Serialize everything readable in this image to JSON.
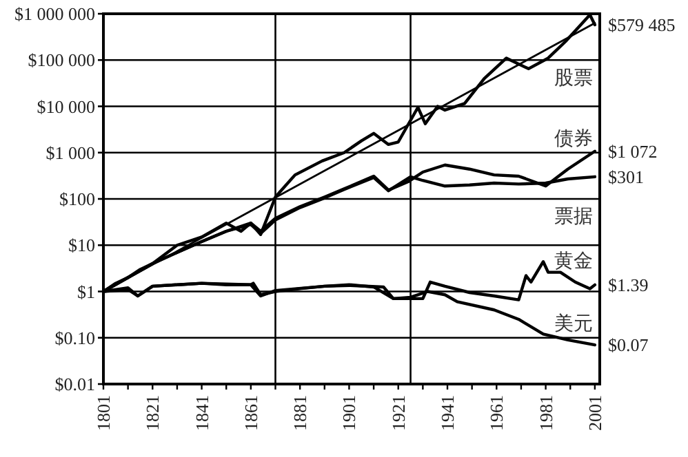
{
  "chart_data": {
    "type": "line",
    "log": true,
    "grid": "y",
    "xlim": [
      1801,
      2003
    ],
    "xticks": [
      1801,
      {
        "value": 1811,
        "label": null
      },
      1821,
      {
        "value": 1831,
        "label": null
      },
      1841,
      {
        "value": 1851,
        "label": null
      },
      1861,
      {
        "value": 1871,
        "label": null
      },
      1881,
      {
        "value": 1891,
        "label": null
      },
      1901,
      {
        "value": 1911,
        "label": null
      },
      1921,
      {
        "value": 1931,
        "label": null
      },
      1941,
      {
        "value": 1951,
        "label": null
      },
      1961,
      {
        "value": 1971,
        "label": null
      },
      1981,
      {
        "value": 1991,
        "label": null
      },
      2001
    ],
    "ylim": [
      0.01,
      1000000
    ],
    "yticks": [
      {
        "value": 0.01,
        "label": "$0.01"
      },
      {
        "value": 0.1,
        "label": "$0.10"
      },
      {
        "value": 1,
        "label": "$1"
      },
      {
        "value": 10,
        "label": "$10"
      },
      {
        "value": 100,
        "label": "$100"
      },
      {
        "value": 1000,
        "label": "$1 000"
      },
      {
        "value": 10000,
        "label": "$10 000"
      },
      {
        "value": 100000,
        "label": "$100 000"
      },
      {
        "value": 1000000,
        "label": "$1 000 000"
      }
    ],
    "ref_lines": [
      {
        "axis": "x",
        "value": 1871,
        "color": "#000000"
      },
      {
        "axis": "x",
        "value": 1926,
        "color": "#000000"
      }
    ],
    "series": [
      {
        "name": "股票",
        "color": "#000000",
        "x": [
          1801,
          1806,
          1811,
          1816,
          1821,
          1831,
          1841,
          1851,
          1857,
          1861,
          1865,
          1871,
          1879,
          1890,
          1899,
          1906,
          1911,
          1917,
          1921,
          1929,
          1932,
          1937,
          1940,
          1948,
          1956,
          1965,
          1974,
          1982,
          1989,
          1999,
          2001
        ],
        "values": [
          1,
          1.5,
          2,
          3,
          4,
          10,
          15,
          30,
          20,
          30,
          17,
          110,
          330,
          660,
          1000,
          1800,
          2600,
          1500,
          1700,
          9500,
          4200,
          10000,
          8300,
          11500,
          40000,
          110000,
          65000,
          110000,
          250000,
          950000,
          579485
        ]
      },
      {
        "name": "债券",
        "color": "#000000",
        "x": [
          1801,
          1811,
          1821,
          1831,
          1841,
          1851,
          1861,
          1865,
          1871,
          1881,
          1891,
          1899,
          1911,
          1917,
          1925,
          1931,
          1940,
          1950,
          1960,
          1970,
          1981,
          1990,
          2001
        ],
        "values": [
          1,
          2,
          4,
          7,
          12,
          20,
          30,
          20,
          38,
          68,
          110,
          165,
          310,
          155,
          235,
          380,
          540,
          440,
          330,
          310,
          190,
          440,
          1072
        ]
      },
      {
        "name": "票据",
        "color": "#000000",
        "x": [
          1801,
          1811,
          1821,
          1831,
          1841,
          1851,
          1861,
          1865,
          1871,
          1881,
          1891,
          1899,
          1911,
          1917,
          1926,
          1931,
          1940,
          1950,
          1960,
          1970,
          1981,
          1990,
          2001
        ],
        "values": [
          1,
          2,
          4,
          7,
          12,
          20,
          28,
          18,
          35,
          65,
          105,
          160,
          290,
          150,
          300,
          250,
          190,
          200,
          220,
          210,
          220,
          270,
          301
        ]
      },
      {
        "name": "黄金",
        "color": "#000000",
        "x": [
          1801,
          1811,
          1815,
          1821,
          1831,
          1841,
          1851,
          1861,
          1862,
          1865,
          1871,
          1881,
          1891,
          1901,
          1911,
          1919,
          1931,
          1934,
          1940,
          1950,
          1960,
          1970,
          1973,
          1975,
          1980,
          1982,
          1987,
          1993,
          1999,
          2001
        ],
        "values": [
          1,
          1.2,
          0.8,
          1.3,
          1.4,
          1.5,
          1.4,
          1.4,
          1.5,
          0.85,
          1,
          1.15,
          1.3,
          1.4,
          1.25,
          0.7,
          0.7,
          1.6,
          1.3,
          0.95,
          0.8,
          0.66,
          2.2,
          1.6,
          4.4,
          2.6,
          2.6,
          1.6,
          1.15,
          1.39
        ]
      },
      {
        "name": "美元",
        "color": "#000000",
        "x": [
          1801,
          1811,
          1815,
          1821,
          1841,
          1861,
          1865,
          1871,
          1891,
          1901,
          1915,
          1919,
          1926,
          1933,
          1940,
          1945,
          1960,
          1970,
          1980,
          1990,
          2001
        ],
        "values": [
          1,
          1.1,
          0.8,
          1.3,
          1.5,
          1.4,
          0.8,
          1.05,
          1.3,
          1.35,
          1.25,
          0.7,
          0.75,
          1.0,
          0.85,
          0.6,
          0.4,
          0.25,
          0.12,
          0.09,
          0.07
        ]
      },
      {
        "type": "line",
        "color": "#000000",
        "x": [
          1801,
          2001
        ],
        "values": [
          1,
          630000
        ]
      }
    ],
    "annotations": [
      "$579 485",
      "$1 072",
      "$301",
      "$1.39",
      "$0.07"
    ]
  }
}
